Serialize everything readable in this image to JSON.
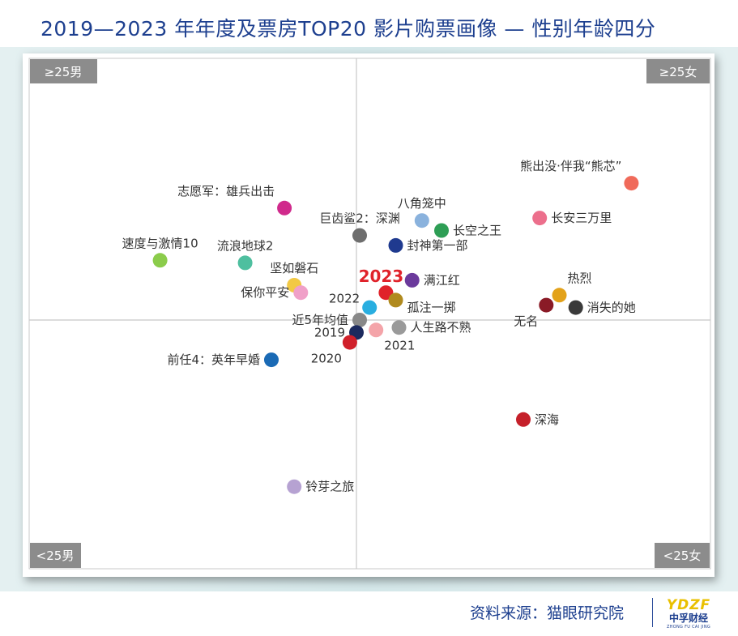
{
  "title": "2019—2023 年年度及票房TOP20 影片购票画像 — 性别年龄四分",
  "source": "资料来源：猫眼研究院",
  "logo": {
    "mark": "YDZF",
    "name": "中孚财经",
    "pinyin": "ZHONG FU CAI JING"
  },
  "chart_data": {
    "type": "scatter",
    "xlim": [
      -1,
      1
    ],
    "ylim": [
      -1,
      1
    ],
    "quadrant_labels": {
      "top_left": "≥25男",
      "top_right": "≥25女",
      "bottom_left": "<25男",
      "bottom_right": "<25女"
    },
    "points": [
      {
        "label": "熊出没·伴我“熊芯”",
        "x": 0.84,
        "y": 0.55,
        "color": "#f06a5a",
        "label_pos": "above-left"
      },
      {
        "label": "志愿军：雄兵出击",
        "x": -0.22,
        "y": 0.45,
        "color": "#d02a8c",
        "label_pos": "above-left"
      },
      {
        "label": "巨齿鲨2：深渊",
        "x": 0.01,
        "y": 0.34,
        "color": "#6e6e6e",
        "label_pos": "above"
      },
      {
        "label": "八角笼中",
        "x": 0.2,
        "y": 0.4,
        "color": "#8ab2dd",
        "label_pos": "above"
      },
      {
        "label": "长空之王",
        "x": 0.26,
        "y": 0.36,
        "color": "#2e9e55",
        "label_pos": "right"
      },
      {
        "label": "长安三万里",
        "x": 0.56,
        "y": 0.41,
        "color": "#ec6f8c",
        "label_pos": "right"
      },
      {
        "label": "速度与激情10",
        "x": -0.6,
        "y": 0.24,
        "color": "#8bcc4b",
        "label_pos": "above"
      },
      {
        "label": "流浪地球2",
        "x": -0.34,
        "y": 0.23,
        "color": "#4ebf9f",
        "label_pos": "above"
      },
      {
        "label": "封神第一部",
        "x": 0.12,
        "y": 0.3,
        "color": "#1f3a8f",
        "label_pos": "right"
      },
      {
        "label": "坚如磐石",
        "x": -0.19,
        "y": 0.14,
        "color": "#f2c945",
        "label_pos": "above"
      },
      {
        "label": "保你平安",
        "x": -0.17,
        "y": 0.11,
        "color": "#f0a0c8",
        "label_pos": "left"
      },
      {
        "label": "满江红",
        "x": 0.17,
        "y": 0.16,
        "color": "#6b3a9c",
        "label_pos": "right"
      },
      {
        "label": "2023",
        "x": 0.09,
        "y": 0.11,
        "color": "#e0222a",
        "label_pos": "above-highlight"
      },
      {
        "label": "孤注一掷",
        "x": 0.12,
        "y": 0.08,
        "color": "#b08a1e",
        "label_pos": "right-below"
      },
      {
        "label": "2022",
        "x": 0.04,
        "y": 0.05,
        "color": "#29aee0",
        "label_pos": "left-above"
      },
      {
        "label": "近5年均值",
        "x": 0.01,
        "y": 0.0,
        "color": "#888888",
        "label_pos": "left"
      },
      {
        "label": "2019",
        "x": 0.0,
        "y": -0.05,
        "color": "#1c2a5e",
        "label_pos": "left"
      },
      {
        "label": "2021",
        "x": 0.06,
        "y": -0.04,
        "color": "#f4a4a9",
        "label_pos": "below-right"
      },
      {
        "label": "人生路不熟",
        "x": 0.13,
        "y": -0.03,
        "color": "#9a9a9a",
        "label_pos": "right"
      },
      {
        "label": "2020",
        "x": -0.02,
        "y": -0.09,
        "color": "#d0202a",
        "label_pos": "below-left"
      },
      {
        "label": "前任4：英年早婚",
        "x": -0.26,
        "y": -0.16,
        "color": "#1a6ab5",
        "label_pos": "left"
      },
      {
        "label": "热烈",
        "x": 0.62,
        "y": 0.1,
        "color": "#e3a21a",
        "label_pos": "above-right"
      },
      {
        "label": "无名",
        "x": 0.58,
        "y": 0.06,
        "color": "#8a1a26",
        "label_pos": "below-left"
      },
      {
        "label": "消失的她",
        "x": 0.67,
        "y": 0.05,
        "color": "#3a3a3a",
        "label_pos": "right"
      },
      {
        "label": "深海",
        "x": 0.51,
        "y": -0.4,
        "color": "#c5202a",
        "label_pos": "right"
      },
      {
        "label": "铃芽之旅",
        "x": -0.19,
        "y": -0.67,
        "color": "#b6a2d2",
        "label_pos": "right"
      }
    ]
  }
}
